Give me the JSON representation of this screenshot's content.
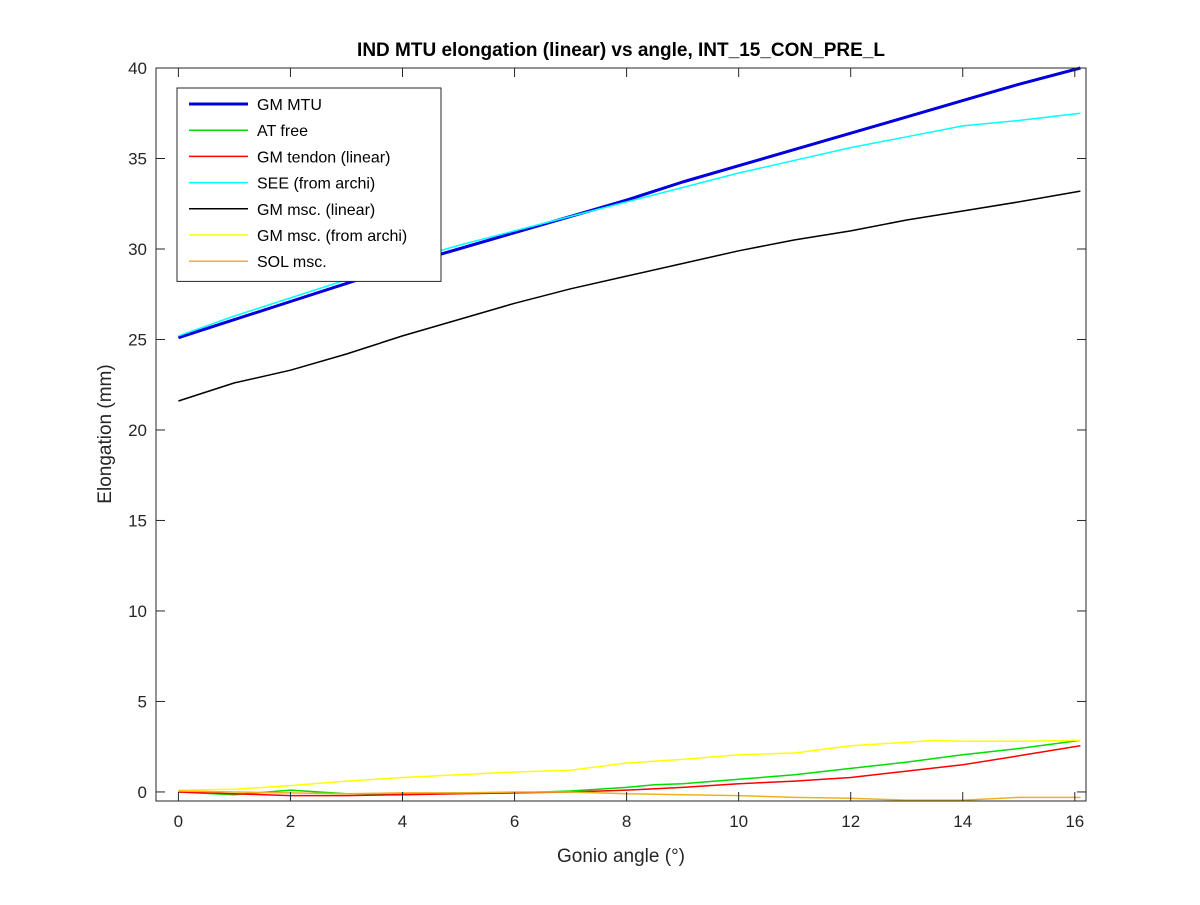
{
  "chart_data": {
    "type": "line",
    "title": "IND MTU elongation (linear) vs angle, INT_15_CON_PRE_L",
    "xlabel": "Gonio angle (°)",
    "ylabel": "Elongation (mm)",
    "xlim": [
      -0.4,
      16.2
    ],
    "ylim": [
      -0.5,
      40
    ],
    "xticks": [
      0,
      2,
      4,
      6,
      8,
      10,
      12,
      14,
      16
    ],
    "yticks": [
      0,
      5,
      10,
      15,
      20,
      25,
      30,
      35,
      40
    ],
    "grid": false,
    "legend_position": "top-left",
    "series": [
      {
        "name": "GM MTU",
        "color": "#0000dd",
        "bold": true,
        "x": [
          0,
          1,
          2,
          3,
          4,
          5,
          6,
          7,
          8,
          9,
          10,
          11,
          12,
          13,
          14,
          15,
          16.1
        ],
        "y": [
          25.1,
          26.1,
          27.1,
          28.1,
          29.1,
          30.0,
          30.9,
          31.8,
          32.7,
          33.7,
          34.6,
          35.5,
          36.4,
          37.3,
          38.2,
          39.1,
          40.0
        ]
      },
      {
        "name": "AT free",
        "color": "#00dd00",
        "x": [
          0,
          1,
          2,
          3,
          4,
          5,
          6,
          7,
          8,
          8.5,
          9,
          10,
          11,
          12,
          13,
          14,
          15,
          16.1
        ],
        "y": [
          0.0,
          -0.15,
          0.1,
          -0.1,
          -0.1,
          -0.05,
          -0.05,
          0.05,
          0.25,
          0.4,
          0.45,
          0.7,
          0.95,
          1.3,
          1.65,
          2.05,
          2.4,
          2.85
        ]
      },
      {
        "name": "GM tendon (linear)",
        "color": "#ff0000",
        "x": [
          0,
          1,
          2,
          3,
          4,
          5,
          6,
          7,
          8,
          9,
          10,
          11,
          12,
          13,
          14,
          15,
          16.1
        ],
        "y": [
          0.0,
          -0.1,
          -0.2,
          -0.2,
          -0.15,
          -0.1,
          -0.05,
          0.0,
          0.1,
          0.25,
          0.45,
          0.6,
          0.8,
          1.15,
          1.5,
          2.0,
          2.55
        ]
      },
      {
        "name": "SEE (from archi)",
        "color": "#00ffff",
        "x": [
          0,
          1,
          2,
          3,
          4,
          5,
          6,
          7,
          8,
          9,
          10,
          11,
          12,
          13,
          14,
          15,
          16.1
        ],
        "y": [
          25.2,
          26.3,
          27.3,
          28.3,
          29.3,
          30.2,
          31.0,
          31.8,
          32.6,
          33.4,
          34.2,
          34.9,
          35.6,
          36.2,
          36.8,
          37.1,
          37.5
        ]
      },
      {
        "name": "GM msc. (linear)",
        "color": "#000000",
        "x": [
          0,
          1,
          2,
          3,
          4,
          5,
          6,
          7,
          8,
          9,
          10,
          11,
          12,
          13,
          14,
          15,
          16.1
        ],
        "y": [
          21.6,
          22.6,
          23.3,
          24.2,
          25.2,
          26.1,
          27.0,
          27.8,
          28.5,
          29.2,
          29.9,
          30.5,
          31.0,
          31.6,
          32.1,
          32.6,
          33.2
        ]
      },
      {
        "name": "GM msc. (from archi)",
        "color": "#ffff00",
        "x": [
          0,
          1,
          2,
          3,
          4,
          5,
          6,
          7,
          8,
          9,
          10,
          11,
          12,
          13,
          13.5,
          14,
          15,
          16.1
        ],
        "y": [
          0.1,
          0.15,
          0.35,
          0.6,
          0.8,
          0.95,
          1.1,
          1.2,
          1.6,
          1.8,
          2.05,
          2.15,
          2.55,
          2.75,
          2.85,
          2.8,
          2.8,
          2.85
        ]
      },
      {
        "name": "SOL msc.",
        "color": "#edb120",
        "x": [
          0,
          1,
          2,
          3,
          4,
          5,
          6,
          7,
          8,
          9,
          10,
          11,
          12,
          13,
          14,
          15,
          16.1
        ],
        "y": [
          0.05,
          0.0,
          -0.05,
          -0.1,
          -0.05,
          -0.05,
          0.0,
          0.0,
          -0.1,
          -0.15,
          -0.2,
          -0.3,
          -0.35,
          -0.45,
          -0.45,
          -0.3,
          -0.3
        ]
      }
    ]
  }
}
